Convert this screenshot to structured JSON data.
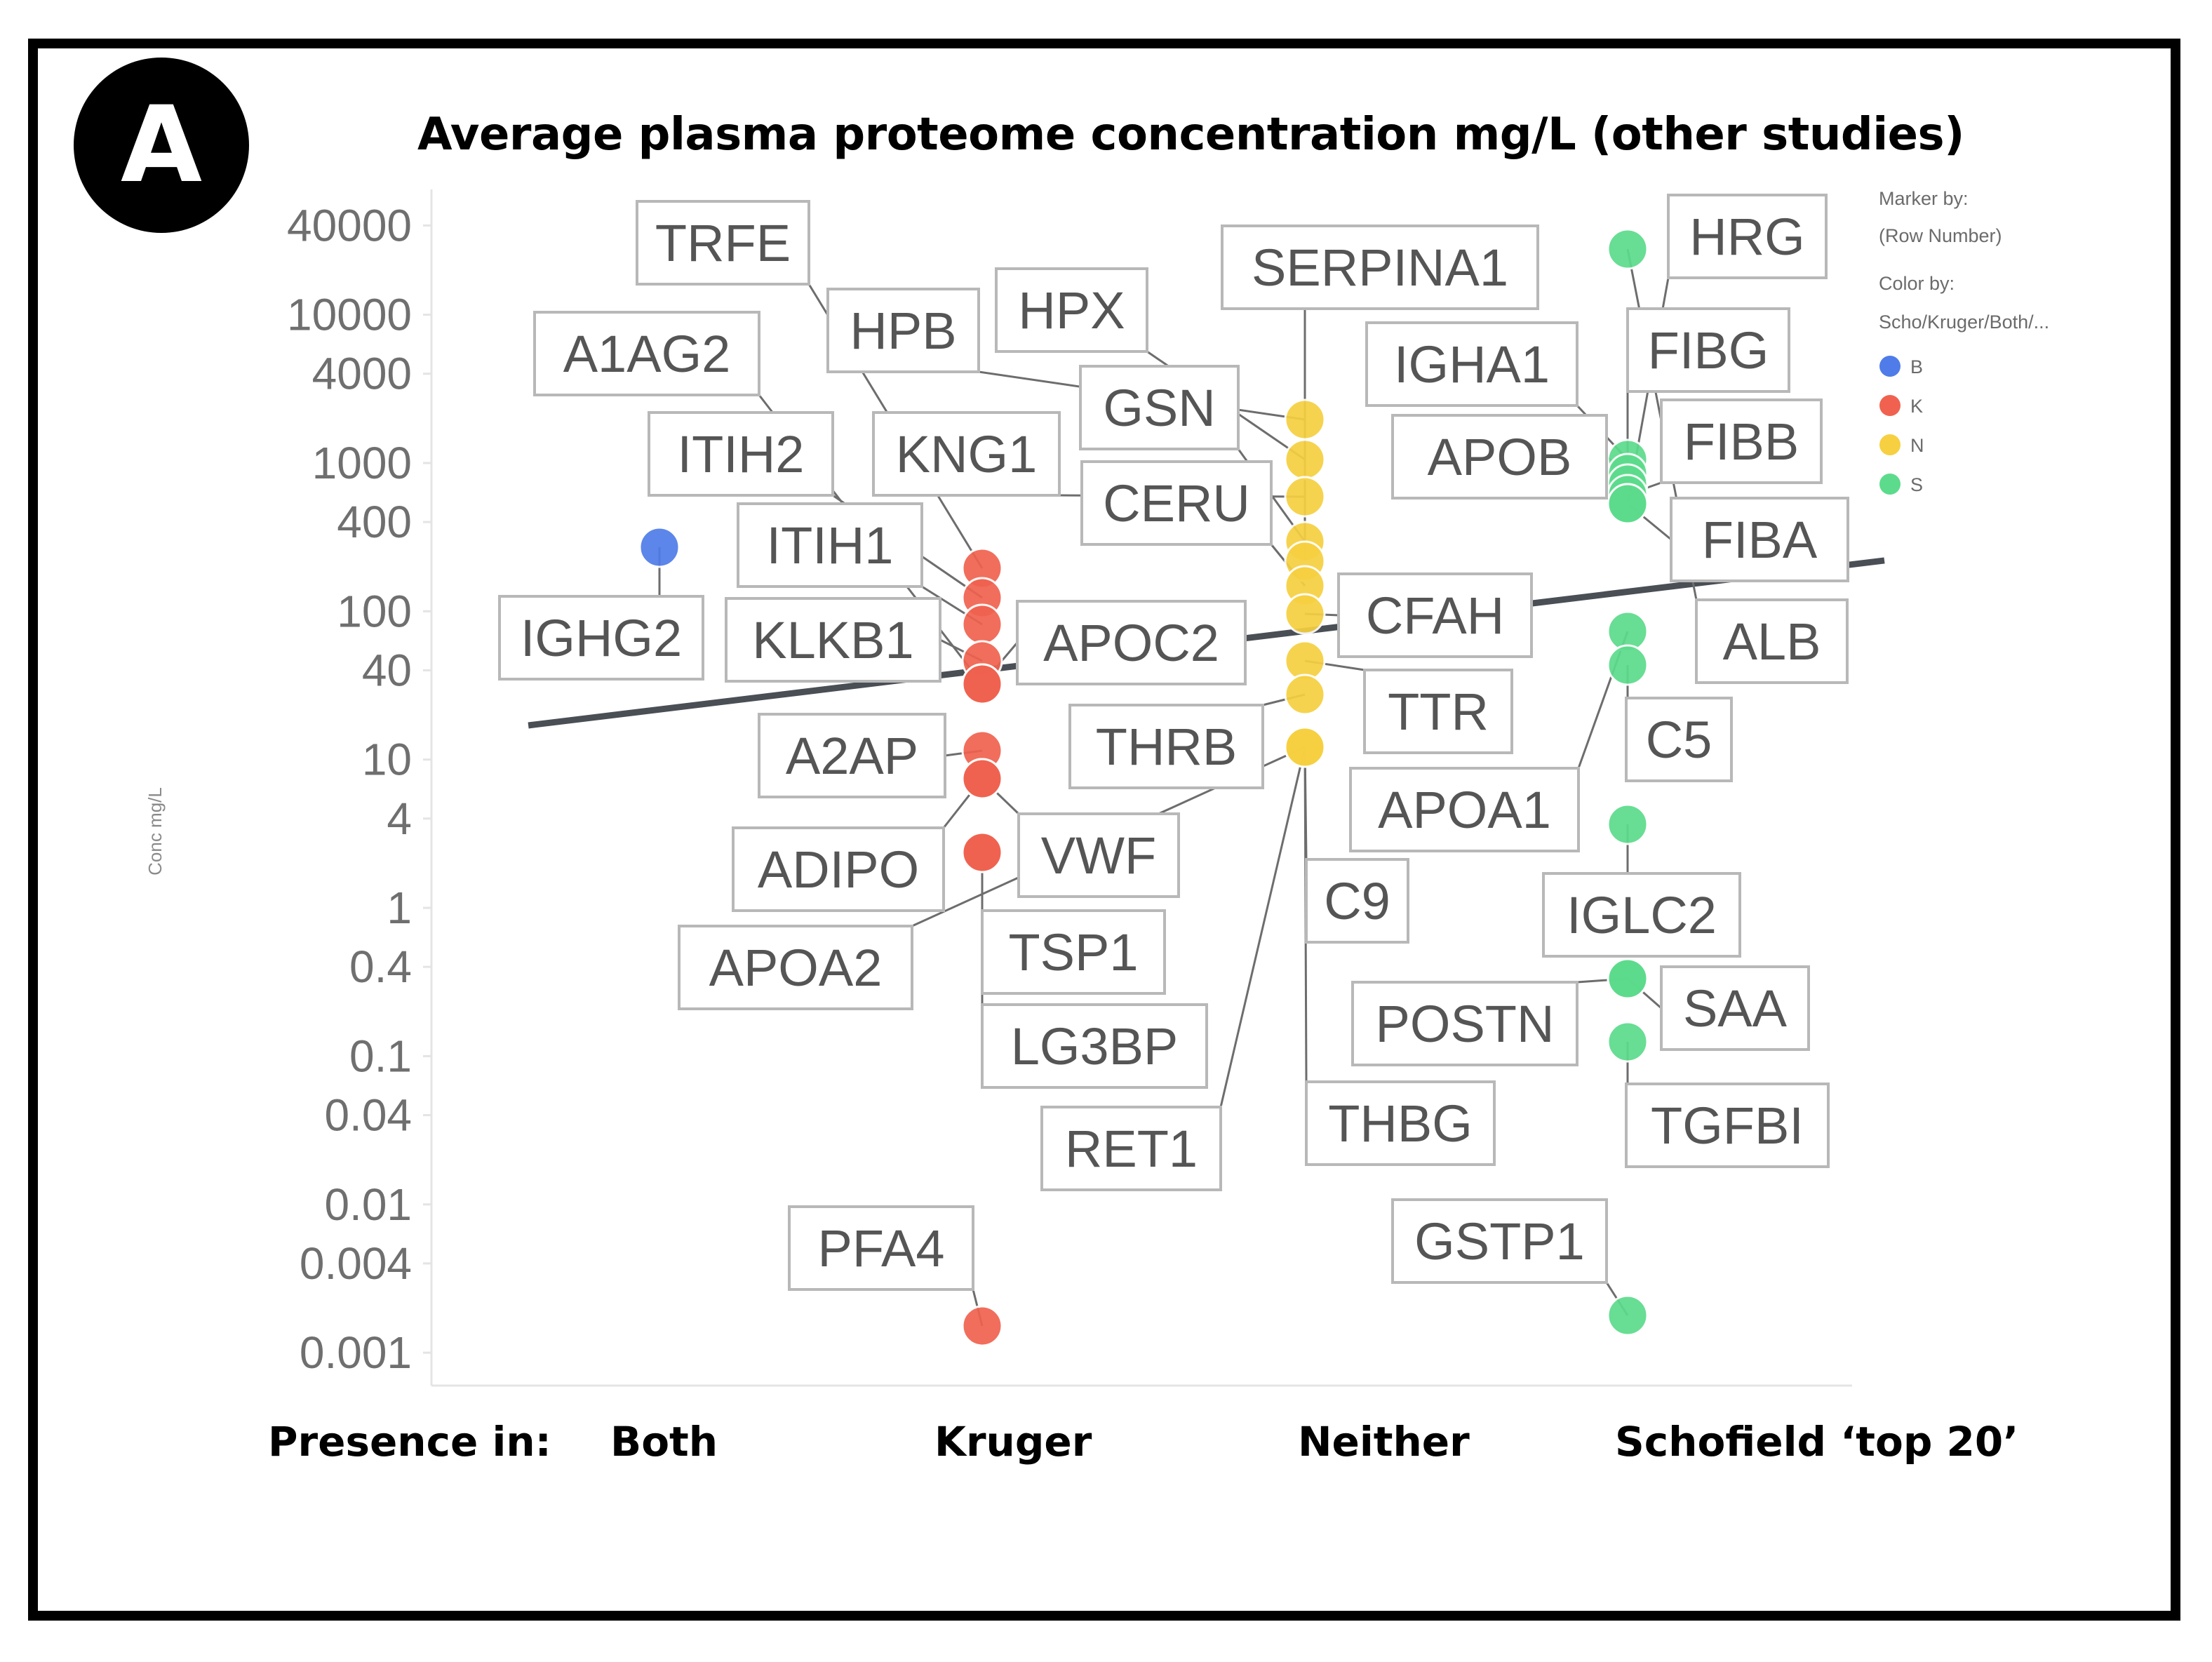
{
  "panel_label": "A",
  "chart_data": {
    "type": "scatter",
    "title": "Average plasma proteome concentration mg/L (other studies)",
    "ylabel": "Conc mg/L",
    "yscale": "log",
    "ylim": [
      0.0006,
      70000
    ],
    "yticks": [
      "40000",
      "10000",
      "4000",
      "1000",
      "400",
      "100",
      "40",
      "10",
      "4",
      "1",
      "0.4",
      "0.1",
      "0.04",
      "0.01",
      "0.004",
      "0.001"
    ],
    "xlabel_prefix": "Presence in:",
    "categories": [
      "Both",
      "Kruger",
      "Neither",
      "Schofield ‘top 20’"
    ],
    "legend": {
      "marker_by_title": "Marker by:",
      "marker_by_value": "(Row Number)",
      "color_by_title": "Color by:",
      "color_by_value": "Scho/Kruger/Both/...",
      "entries": [
        {
          "key": "B",
          "color": "#4f7ce8"
        },
        {
          "key": "K",
          "color": "#f0624f"
        },
        {
          "key": "N",
          "color": "#f6d040"
        },
        {
          "key": "S",
          "color": "#5cdb8c"
        }
      ]
    },
    "trend_line": {
      "label": "",
      "points": [
        [
          0.6,
          17
        ],
        [
          4.8,
          220
        ]
      ]
    },
    "points": [
      {
        "label": "IGHG2",
        "group": "B",
        "category": 0,
        "value": 400
      },
      {
        "label": "TRFE",
        "group": "K",
        "category": 1,
        "value": 250
      },
      {
        "label": "ITIH2",
        "group": "K",
        "category": 1,
        "value": 170
      },
      {
        "label": "ITIH1",
        "group": "K",
        "category": 1,
        "value": 120
      },
      {
        "label": "KLKB1",
        "group": "K",
        "category": 1,
        "value": 70
      },
      {
        "label": "APOC2",
        "group": "K",
        "category": 1,
        "value": 50
      },
      {
        "label": "A1AG2",
        "group": "K",
        "category": 1,
        "value": 40
      },
      {
        "label": "A2AP",
        "group": "K",
        "category": 1,
        "value": 15
      },
      {
        "label": "ADIPO",
        "group": "K",
        "category": 1,
        "value": 10
      },
      {
        "label": "VWF",
        "group": "K",
        "category": 1,
        "value": 10
      },
      {
        "label": "TSP1",
        "group": "K",
        "category": 1,
        "value": 2.6
      },
      {
        "label": "LG3BP",
        "group": "K",
        "category": 1,
        "value": 2.6
      },
      {
        "label": "PFA4",
        "group": "K",
        "category": 1,
        "value": 0.0015
      },
      {
        "label": "HPB",
        "group": "N",
        "category": 2,
        "value": 3000
      },
      {
        "label": "HPX",
        "group": "N",
        "category": 2,
        "value": 1400
      },
      {
        "label": "KNG1",
        "group": "N",
        "category": 2,
        "value": 900
      },
      {
        "label": "GSN",
        "group": "N",
        "category": 2,
        "value": 400
      },
      {
        "label": "SERPINA1",
        "group": "N",
        "category": 2,
        "value": 280
      },
      {
        "label": "CERU",
        "group": "N",
        "category": 2,
        "value": 190
      },
      {
        "label": "CFAH",
        "group": "N",
        "category": 2,
        "value": 130
      },
      {
        "label": "TTR",
        "group": "N",
        "category": 2,
        "value": 50
      },
      {
        "label": "THRB",
        "group": "N",
        "category": 2,
        "value": 30
      },
      {
        "label": "APOA2",
        "group": "N",
        "category": 2,
        "value": 15
      },
      {
        "label": "RET1",
        "group": "N",
        "category": 2,
        "value": 15
      },
      {
        "label": "C9",
        "group": "N",
        "category": 2,
        "value": 15
      },
      {
        "label": "THBG",
        "group": "N",
        "category": 2,
        "value": 15
      },
      {
        "label": "ALB",
        "group": "S",
        "category": 3,
        "value": 40000
      },
      {
        "label": "IGHA1",
        "group": "S",
        "category": 3,
        "value": 1400
      },
      {
        "label": "APOB",
        "group": "S",
        "category": 3,
        "value": 1100
      },
      {
        "label": "FIBG",
        "group": "S",
        "category": 3,
        "value": 1000
      },
      {
        "label": "FIBB",
        "group": "S",
        "category": 3,
        "value": 900
      },
      {
        "label": "FIBA",
        "group": "S",
        "category": 3,
        "value": 800
      },
      {
        "label": "HRG",
        "group": "S",
        "category": 3,
        "value": 700
      },
      {
        "label": "APOA1",
        "group": "S",
        "category": 3,
        "value": 100
      },
      {
        "label": "C5",
        "group": "S",
        "category": 3,
        "value": 60
      },
      {
        "label": "IGLC2",
        "group": "S",
        "category": 3,
        "value": 4
      },
      {
        "label": "SAA",
        "group": "S",
        "category": 3,
        "value": 0.4
      },
      {
        "label": "POSTN",
        "group": "S",
        "category": 3,
        "value": 0.4
      },
      {
        "label": "TGFBI",
        "group": "S",
        "category": 3,
        "value": 0.15
      },
      {
        "label": "GSTP1",
        "group": "S",
        "category": 3,
        "value": 0.002
      }
    ]
  }
}
